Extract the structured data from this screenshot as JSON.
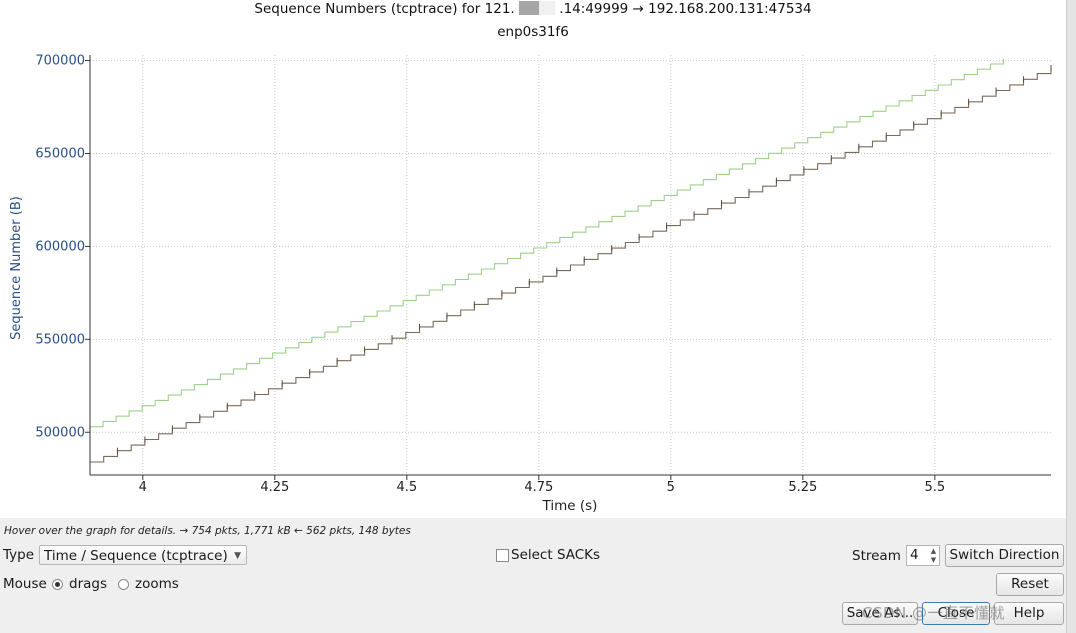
{
  "window": {
    "title_prefix": "Sequence Numbers (tcptrace) for 121.",
    "title_suffix": ".14:49999 → 192.168.200.131:47534",
    "subtitle": "enp0s31f6"
  },
  "colors": {
    "axis_text": "#2a4f8a",
    "series_sent": "#7a6a5a",
    "series_window": "#9ed08a",
    "grid": "#c8c8c8"
  },
  "chart_data": {
    "type": "line",
    "xlabel": "Time (s)",
    "ylabel": "Sequence Number (B)",
    "xlim": [
      3.9,
      5.72
    ],
    "ylim": [
      477000,
      703000
    ],
    "xticks": [
      4,
      4.25,
      4.5,
      4.75,
      5,
      5.25,
      5.5
    ],
    "xtick_labels": [
      "4",
      "4.25",
      "4.5",
      "4.75",
      "5",
      "5.25",
      "5.5"
    ],
    "yticks": [
      500000,
      550000,
      600000,
      650000,
      700000
    ],
    "ytick_labels": [
      "500000",
      "550000",
      "600000",
      "650000",
      "700000"
    ],
    "grid": true,
    "series": [
      {
        "style": "step",
        "x": [
          3.9,
          5.72
        ],
        "y": [
          484000,
          696000
        ]
      },
      {
        "style": "step",
        "x": [
          3.9,
          5.63
        ],
        "y": [
          503000,
          701000
        ]
      }
    ]
  },
  "status": {
    "hint": "Hover over the graph for details. → 754 pkts, 1,771 kB ← 562 pkts, 148 bytes"
  },
  "controls": {
    "type_label": "Type",
    "type_value": "Time / Sequence (tcptrace)",
    "select_sacks_label": "Select SACKs",
    "stream_label": "Stream",
    "stream_value": "4",
    "switch_direction": "Switch Direction",
    "mouse_label": "Mouse",
    "drags_label": "drags",
    "zooms_label": "zooms",
    "reset": "Reset",
    "save_as": "Save As...",
    "close": "Close",
    "help": "Help"
  },
  "watermark": "CSDN @一直不懂就"
}
